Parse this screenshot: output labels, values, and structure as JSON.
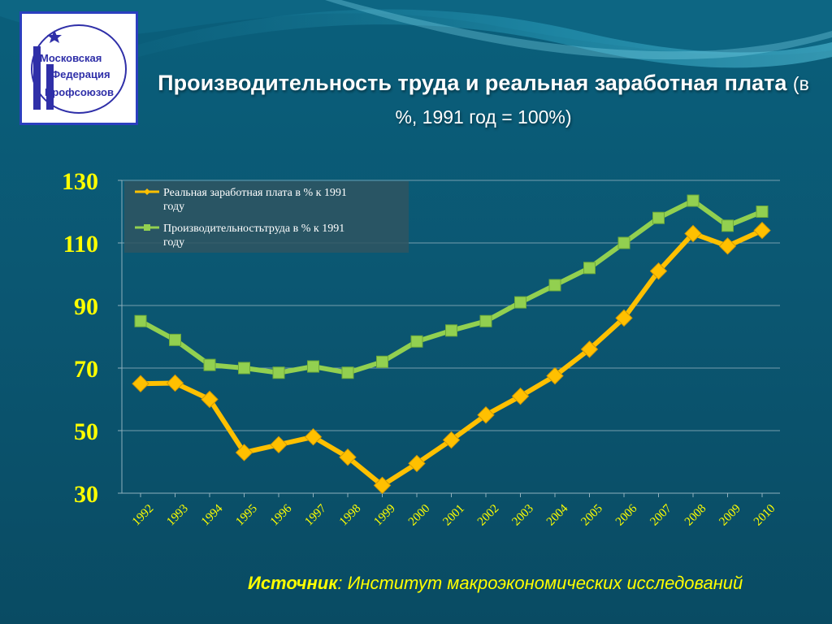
{
  "logo": {
    "lines": [
      "Московская",
      "Федерация",
      "Профсоюзов"
    ]
  },
  "header": {
    "title_main": "Производительность труда и реальная заработная плата",
    "title_sub": "(в %, 1991 год = 100%)"
  },
  "colors": {
    "background": "#0b5a75",
    "wage_series": "#ffc000",
    "productivity_series": "#92d050",
    "axis_labels": "#ffff00"
  },
  "chart_data": {
    "type": "line",
    "x": [
      "1992",
      "1993",
      "1994",
      "1995",
      "1996",
      "1997",
      "1998",
      "1999",
      "2000",
      "2001",
      "2002",
      "2003",
      "2004",
      "2005",
      "2006",
      "2007",
      "2008",
      "2009",
      "2010"
    ],
    "series": [
      {
        "name": "Реальная заработная плата в % к 1991 году",
        "marker": "diamond",
        "values": [
          65,
          65.2,
          60,
          43,
          45.5,
          48,
          41.5,
          32.5,
          39.5,
          47,
          55,
          61,
          67.5,
          76,
          86,
          101,
          113,
          109,
          114
        ]
      },
      {
        "name": "Производительностьтруда в % к 1991 году",
        "marker": "square",
        "values": [
          85,
          79,
          71,
          70,
          68.5,
          70.5,
          68.5,
          72,
          78.5,
          82,
          85,
          91,
          96.5,
          102,
          110,
          118,
          123.5,
          115.5,
          120
        ]
      }
    ],
    "yticks": [
      30,
      50,
      70,
      90,
      110,
      130
    ],
    "ylim": [
      30,
      130
    ],
    "grid": true,
    "legend": "top-left"
  },
  "footer": {
    "source_label": "Источник",
    "source_text": ": Институт макроэкономических исследований"
  }
}
